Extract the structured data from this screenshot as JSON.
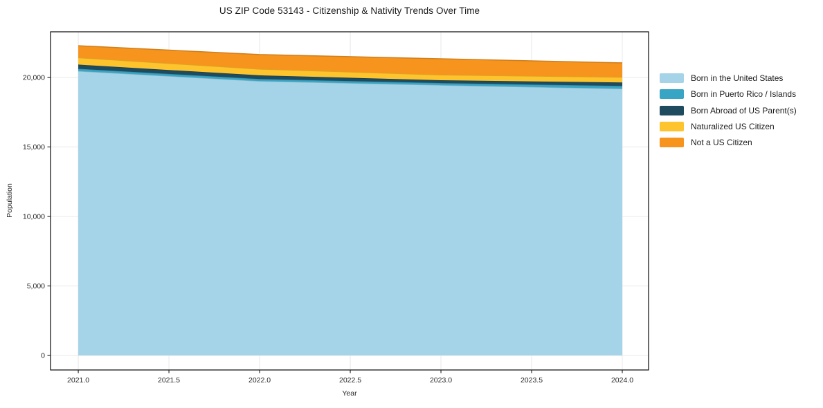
{
  "chart_data": {
    "type": "area",
    "stacked": true,
    "title": "US ZIP Code 53143 - Citizenship & Nativity Trends Over Time",
    "xlabel": "Year",
    "ylabel": "Population",
    "x": [
      2021,
      2022,
      2023,
      2024
    ],
    "series": [
      {
        "name": "Born in the United States",
        "color": "#a5d3e7",
        "values": [
          20460,
          19740,
          19450,
          19190
        ]
      },
      {
        "name": "Born in Puerto Rico / Islands",
        "color": "#39a5c4",
        "values": [
          165,
          150,
          150,
          200
        ]
      },
      {
        "name": "Born Abroad of US Parent(s)",
        "color": "#1f4b5e",
        "values": [
          300,
          265,
          200,
          250
        ]
      },
      {
        "name": "Naturalized US Citizen",
        "color": "#fdc42e",
        "values": [
          500,
          450,
          385,
          380
        ]
      },
      {
        "name": "Not a US Citizen",
        "color": "#f6941e",
        "values": [
          860,
          1045,
          1160,
          1030
        ]
      }
    ],
    "totals": [
      22285,
      21650,
      21345,
      21050
    ],
    "xlim": [
      2020.847,
      2024.145
    ],
    "ylim": [
      -1045,
      23285
    ],
    "x_ticks": {
      "values": [
        2021.0,
        2021.5,
        2022.0,
        2022.5,
        2023.0,
        2023.5,
        2024.0
      ],
      "labels": [
        "2021.0",
        "2021.5",
        "2022.0",
        "2022.5",
        "2023.0",
        "2023.5",
        "2024.0"
      ]
    },
    "y_ticks": {
      "values": [
        0,
        5000,
        10000,
        15000,
        20000
      ],
      "labels": [
        "0",
        "5,000",
        "10,000",
        "15,000",
        "20,000"
      ]
    },
    "grid": true,
    "legend_position": "outside-right",
    "style": {
      "grid_color": "#e8e8e8",
      "spine_color": "#1a1a1a",
      "tick_text_color": "#262626",
      "background": "#ffffff"
    }
  }
}
